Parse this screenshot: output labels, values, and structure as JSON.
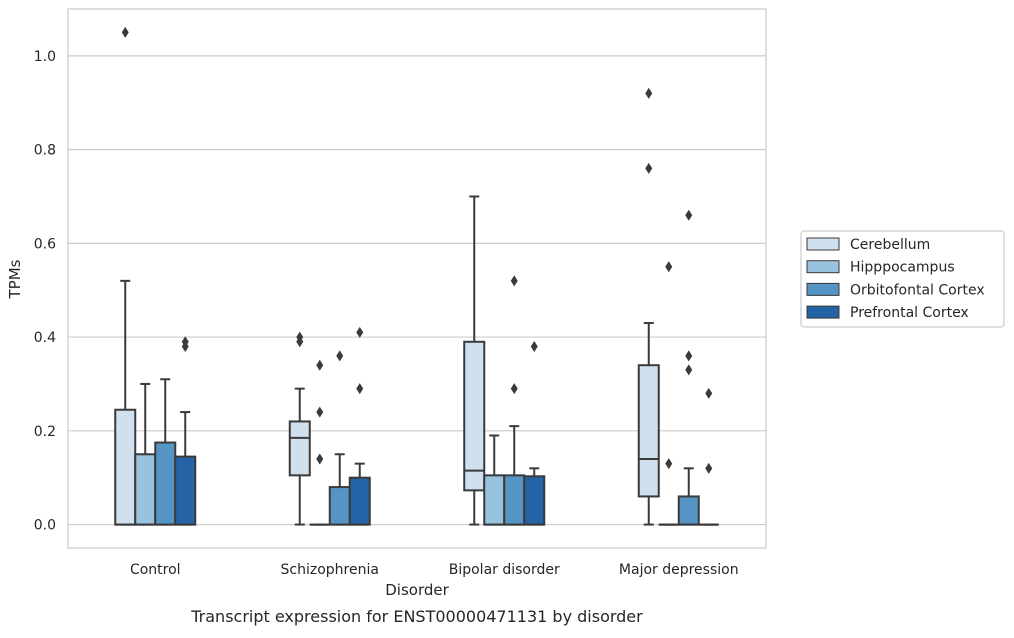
{
  "chart_data": {
    "type": "box",
    "xlabel": "Disorder",
    "ylabel": "TPMs",
    "caption": "Transcript expression for ENST00000471131 by disorder",
    "categories": [
      "Control",
      "Schizophrenia",
      "Bipolar disorder",
      "Major depression"
    ],
    "ylim": [
      -0.05,
      1.1
    ],
    "yticks": [
      "0.0",
      "0.2",
      "0.4",
      "0.6",
      "0.8",
      "1.0"
    ],
    "grid": "horizontal",
    "legend_position": "right",
    "series": [
      {
        "name": "Cerebellum",
        "color": "#d0e0ef",
        "boxes": [
          {
            "category": "Control",
            "whisker_low": 0.0,
            "q1": 0.0,
            "median": 0.0,
            "q3": 0.245,
            "whisker_high": 0.52,
            "outliers": [
              1.05
            ]
          },
          {
            "category": "Schizophrenia",
            "whisker_low": 0.0,
            "q1": 0.105,
            "median": 0.185,
            "q3": 0.22,
            "whisker_high": 0.29,
            "outliers": [
              0.4,
              0.39
            ]
          },
          {
            "category": "Bipolar disorder",
            "whisker_low": 0.0,
            "q1": 0.073,
            "median": 0.115,
            "q3": 0.39,
            "whisker_high": 0.7,
            "outliers": []
          },
          {
            "category": "Major depression",
            "whisker_low": 0.0,
            "q1": 0.06,
            "median": 0.14,
            "q3": 0.34,
            "whisker_high": 0.43,
            "outliers": [
              0.92,
              0.76
            ]
          }
        ]
      },
      {
        "name": "Hipppocampus",
        "color": "#98c2de",
        "boxes": [
          {
            "category": "Control",
            "whisker_low": 0.0,
            "q1": 0.0,
            "median": 0.0,
            "q3": 0.15,
            "whisker_high": 0.3,
            "outliers": []
          },
          {
            "category": "Schizophrenia",
            "whisker_low": 0.0,
            "q1": 0.0,
            "median": 0.0,
            "q3": 0.0,
            "whisker_high": 0.0,
            "outliers": [
              0.34,
              0.24,
              0.14
            ]
          },
          {
            "category": "Bipolar disorder",
            "whisker_low": 0.0,
            "q1": 0.0,
            "median": 0.0,
            "q3": 0.105,
            "whisker_high": 0.19,
            "outliers": []
          },
          {
            "category": "Major depression",
            "whisker_low": 0.0,
            "q1": 0.0,
            "median": 0.0,
            "q3": 0.0,
            "whisker_high": 0.0,
            "outliers": [
              0.55,
              0.13
            ]
          }
        ]
      },
      {
        "name": "Orbitofontal Cortex",
        "color": "#5595c5",
        "boxes": [
          {
            "category": "Control",
            "whisker_low": 0.0,
            "q1": 0.0,
            "median": 0.0,
            "q3": 0.175,
            "whisker_high": 0.31,
            "outliers": []
          },
          {
            "category": "Schizophrenia",
            "whisker_low": 0.0,
            "q1": 0.0,
            "median": 0.0,
            "q3": 0.08,
            "whisker_high": 0.15,
            "outliers": [
              0.36
            ]
          },
          {
            "category": "Bipolar disorder",
            "whisker_low": 0.0,
            "q1": 0.0,
            "median": 0.0,
            "q3": 0.105,
            "whisker_high": 0.21,
            "outliers": [
              0.52,
              0.29
            ]
          },
          {
            "category": "Major depression",
            "whisker_low": 0.0,
            "q1": 0.0,
            "median": 0.0,
            "q3": 0.06,
            "whisker_high": 0.12,
            "outliers": [
              0.66,
              0.36,
              0.33
            ]
          }
        ]
      },
      {
        "name": "Prefrontal Cortex",
        "color": "#2464a6",
        "boxes": [
          {
            "category": "Control",
            "whisker_low": 0.0,
            "q1": 0.0,
            "median": 0.0,
            "q3": 0.145,
            "whisker_high": 0.24,
            "outliers": [
              0.39,
              0.38
            ]
          },
          {
            "category": "Schizophrenia",
            "whisker_low": 0.0,
            "q1": 0.0,
            "median": 0.0,
            "q3": 0.1,
            "whisker_high": 0.13,
            "outliers": [
              0.41,
              0.29
            ]
          },
          {
            "category": "Bipolar disorder",
            "whisker_low": 0.0,
            "q1": 0.0,
            "median": 0.0,
            "q3": 0.103,
            "whisker_high": 0.12,
            "outliers": [
              0.38
            ]
          },
          {
            "category": "Major depression",
            "whisker_low": 0.0,
            "q1": 0.0,
            "median": 0.0,
            "q3": 0.0,
            "whisker_high": 0.0,
            "outliers": [
              0.28,
              0.12
            ]
          }
        ]
      }
    ]
  }
}
